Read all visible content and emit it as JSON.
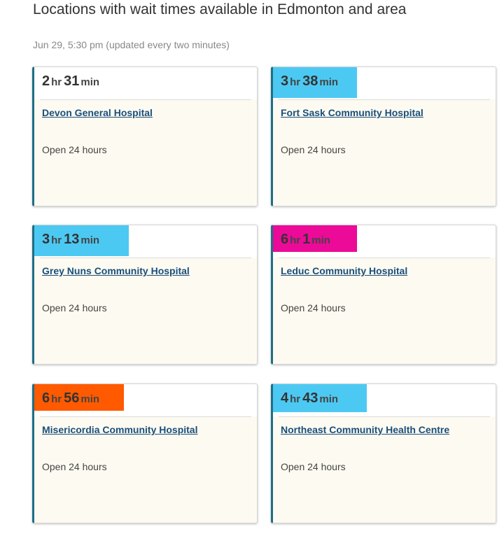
{
  "page": {
    "title": "Locations with wait times available in Edmonton and area",
    "updated": "Jun 29, 5:30 pm (updated every two minutes)"
  },
  "colors": {
    "card_border_accent": "#1f6e86",
    "link": "#1a4f7a",
    "highlight_blue": "#4cc9f2",
    "highlight_magenta": "#ec0a98",
    "highlight_orange": "#ff5a00"
  },
  "locations": [
    {
      "hours_num": "2",
      "hours_unit": "hr",
      "mins_num": "31",
      "mins_unit": "min",
      "name": "Devon General Hospital",
      "status": "Open 24 hours",
      "highlight": ""
    },
    {
      "hours_num": "3",
      "hours_unit": "hr",
      "mins_num": "38",
      "mins_unit": "min",
      "name": "Fort Sask Community Hospital",
      "status": "Open 24 hours",
      "highlight": "#4cc9f2"
    },
    {
      "hours_num": "3",
      "hours_unit": "hr",
      "mins_num": "13",
      "mins_unit": "min",
      "name": "Grey Nuns Community Hospital",
      "status": "Open 24 hours",
      "highlight": "#4cc9f2"
    },
    {
      "hours_num": "6",
      "hours_unit": "hr",
      "mins_num": "1",
      "mins_unit": "min",
      "name": "Leduc Community Hospital",
      "status": "Open 24 hours",
      "highlight": "#ec0a98"
    },
    {
      "hours_num": "6",
      "hours_unit": "hr",
      "mins_num": "56",
      "mins_unit": "min",
      "name": "Misericordia Community Hospital",
      "status": "Open 24 hours",
      "highlight": "#ff5a00"
    },
    {
      "hours_num": "4",
      "hours_unit": "hr",
      "mins_num": "43",
      "mins_unit": "min",
      "name": "Northeast Community Health Centre",
      "status": "Open 24 hours",
      "highlight": "#4cc9f2"
    }
  ]
}
